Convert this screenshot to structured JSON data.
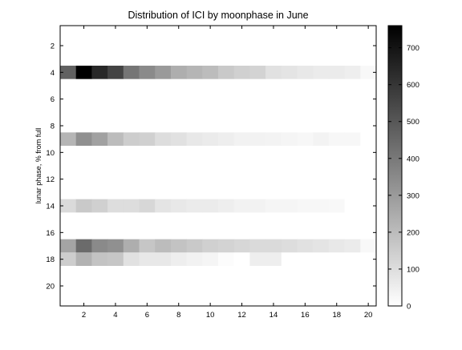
{
  "chart_data": {
    "type": "heatmap",
    "title": "Distribution of ICI by moonphase in June",
    "xlabel": "",
    "ylabel": "lunar phase, % from full",
    "x_ticks": [
      2,
      4,
      6,
      8,
      10,
      12,
      14,
      16,
      18,
      20
    ],
    "y_ticks": [
      2,
      4,
      6,
      8,
      10,
      12,
      14,
      16,
      18,
      20
    ],
    "xlim": [
      0.5,
      20.5
    ],
    "ylim": [
      0.5,
      21.5
    ],
    "y_direction": "reversed",
    "colormap": "gray-reversed",
    "color_range": [
      0,
      760
    ],
    "colorbar_ticks": [
      0,
      100,
      200,
      300,
      400,
      500,
      600,
      700
    ],
    "grid": false,
    "rows": [
      {
        "y": 4,
        "values": [
          470,
          760,
          640,
          560,
          410,
          350,
          300,
          240,
          220,
          200,
          160,
          140,
          130,
          90,
          80,
          70,
          60,
          60,
          50,
          20
        ]
      },
      {
        "y": 9,
        "values": [
          220,
          330,
          280,
          200,
          150,
          140,
          100,
          90,
          70,
          60,
          50,
          40,
          40,
          35,
          30,
          25,
          35,
          25,
          25,
          0
        ]
      },
      {
        "y": 14,
        "values": [
          110,
          160,
          140,
          100,
          100,
          120,
          80,
          70,
          60,
          60,
          50,
          40,
          40,
          30,
          30,
          25,
          25,
          20,
          0,
          0
        ]
      },
      {
        "y": 17,
        "values": [
          270,
          440,
          350,
          330,
          240,
          170,
          200,
          180,
          160,
          140,
          130,
          120,
          110,
          110,
          100,
          90,
          80,
          70,
          60,
          20
        ]
      },
      {
        "y": 18,
        "values": [
          150,
          230,
          180,
          170,
          90,
          70,
          70,
          50,
          40,
          30,
          10,
          0,
          50,
          50,
          0,
          0,
          0,
          0,
          0,
          0
        ]
      }
    ]
  }
}
